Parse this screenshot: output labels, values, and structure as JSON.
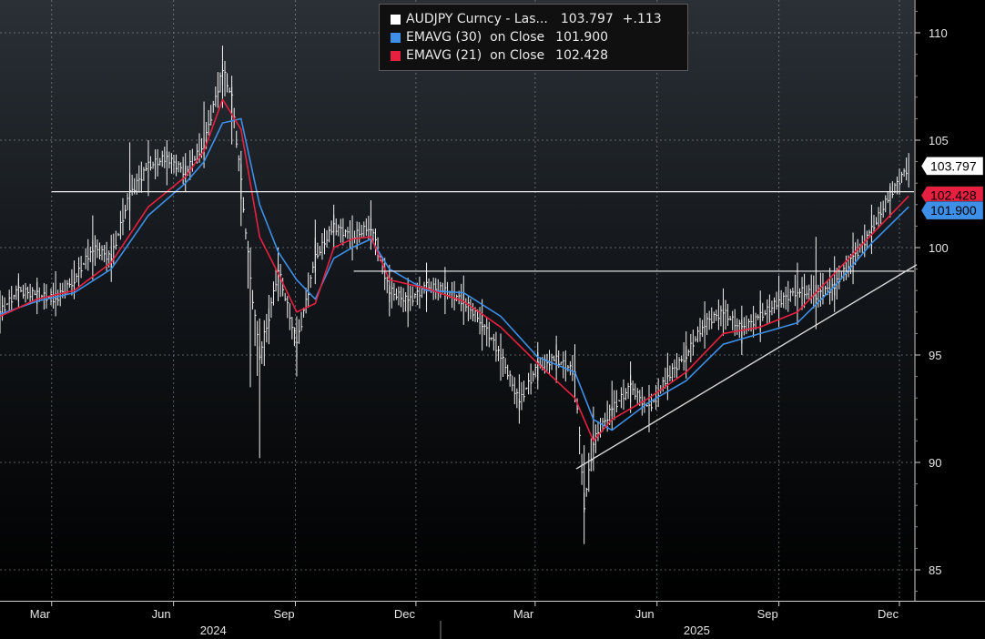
{
  "chart_data": {
    "type": "line",
    "title": "",
    "xlabel": "",
    "ylabel": "",
    "ylim": [
      84,
      111
    ],
    "y_ticks": [
      85,
      90,
      95,
      100,
      105,
      110
    ],
    "y_tick_labels": [
      "85",
      "90",
      "95",
      "100",
      "105",
      "110"
    ],
    "x_ticks": [
      {
        "label": "Mar",
        "date": "2024-03-01"
      },
      {
        "label": "Jun",
        "date": "2024-06-01"
      },
      {
        "label": "Sep",
        "date": "2024-09-01"
      },
      {
        "label": "Dec",
        "date": "2024-12-01"
      },
      {
        "label": "Mar",
        "date": "2025-03-01"
      },
      {
        "label": "Jun",
        "date": "2025-06-01"
      },
      {
        "label": "Sep",
        "date": "2025-09-01"
      },
      {
        "label": "Dec",
        "date": "2025-12-01"
      }
    ],
    "year_labels": [
      {
        "label": "2024",
        "date": "2024-07-01"
      },
      {
        "label": "2025",
        "date": "2025-07-01"
      }
    ],
    "x_range": [
      "2024-01-22",
      "2025-12-12"
    ],
    "grid": true,
    "legend_position": "top",
    "series": [
      {
        "name": "AUDJPY Curncy - Las...",
        "legend_value": "103.797",
        "legend_change": "+.113",
        "color": "#ffffff",
        "style": "bars",
        "x": [
          "2024-01-22",
          "2024-02-05",
          "2024-02-19",
          "2024-03-04",
          "2024-03-18",
          "2024-04-01",
          "2024-04-15",
          "2024-04-29",
          "2024-05-13",
          "2024-05-27",
          "2024-06-10",
          "2024-06-24",
          "2024-07-08",
          "2024-07-15",
          "2024-07-22",
          "2024-07-29",
          "2024-08-05",
          "2024-08-12",
          "2024-08-19",
          "2024-09-02",
          "2024-09-16",
          "2024-09-30",
          "2024-10-14",
          "2024-10-28",
          "2024-11-11",
          "2024-11-25",
          "2024-12-09",
          "2024-12-23",
          "2025-01-06",
          "2025-01-20",
          "2025-02-03",
          "2025-02-17",
          "2025-03-03",
          "2025-03-17",
          "2025-03-31",
          "2025-04-07",
          "2025-04-14",
          "2025-04-28",
          "2025-05-12",
          "2025-05-26",
          "2025-06-09",
          "2025-06-23",
          "2025-07-07",
          "2025-07-21",
          "2025-08-04",
          "2025-08-18",
          "2025-09-01",
          "2025-09-15",
          "2025-09-29",
          "2025-10-13",
          "2025-10-27",
          "2025-11-10",
          "2025-11-24",
          "2025-12-08"
        ],
        "y": [
          97.0,
          98.0,
          97.8,
          97.6,
          98.5,
          100.0,
          99.5,
          102.5,
          103.8,
          104.2,
          103.5,
          104.8,
          108.3,
          107.0,
          103.0,
          98.5,
          95.0,
          96.8,
          99.0,
          95.5,
          99.5,
          101.0,
          100.5,
          101.0,
          98.0,
          97.5,
          98.2,
          98.0,
          97.5,
          96.5,
          95.0,
          92.8,
          94.5,
          94.8,
          94.2,
          88.0,
          91.0,
          92.5,
          93.5,
          92.5,
          94.0,
          95.0,
          96.5,
          97.0,
          96.2,
          96.8,
          97.5,
          98.0,
          97.8,
          98.2,
          99.5,
          100.8,
          102.5,
          103.8
        ],
        "high": [
          98.0,
          98.8,
          98.6,
          98.9,
          99.4,
          101.5,
          100.6,
          104.9,
          105.0,
          105.0,
          104.4,
          106.8,
          109.4,
          108.0,
          104.5,
          100.0,
          96.7,
          97.8,
          100.0,
          96.8,
          101.3,
          102.0,
          101.5,
          102.2,
          99.2,
          98.6,
          99.3,
          99.1,
          98.7,
          97.6,
          96.0,
          94.1,
          95.6,
          95.9,
          95.5,
          90.8,
          92.6,
          93.8,
          94.7,
          93.6,
          95.1,
          96.1,
          97.5,
          98.1,
          97.3,
          98.0,
          98.7,
          99.3,
          100.5,
          99.6,
          100.7,
          102.0,
          103.0,
          104.4
        ],
        "low": [
          96.0,
          97.2,
          96.9,
          96.8,
          97.6,
          98.5,
          98.4,
          100.8,
          102.4,
          102.9,
          102.6,
          103.7,
          106.5,
          104.8,
          101.0,
          93.5,
          90.2,
          95.5,
          97.5,
          94.0,
          98.3,
          99.9,
          99.4,
          99.9,
          96.8,
          96.3,
          97.0,
          96.9,
          96.4,
          95.2,
          93.8,
          91.8,
          93.4,
          93.7,
          92.8,
          86.2,
          89.6,
          91.5,
          92.3,
          91.4,
          92.9,
          93.9,
          95.3,
          95.9,
          95.0,
          95.6,
          96.3,
          96.4,
          96.2,
          97.0,
          98.3,
          99.7,
          101.4,
          102.8
        ]
      },
      {
        "name": "EMAVG (30)  on Close",
        "legend_value": "101.900",
        "color": "#3d8fe8",
        "x": [
          "2024-01-22",
          "2024-02-19",
          "2024-03-18",
          "2024-04-15",
          "2024-05-13",
          "2024-06-10",
          "2024-06-24",
          "2024-07-08",
          "2024-07-22",
          "2024-08-05",
          "2024-08-19",
          "2024-09-02",
          "2024-09-16",
          "2024-09-30",
          "2024-10-14",
          "2024-10-28",
          "2024-11-11",
          "2024-12-09",
          "2025-01-06",
          "2025-02-03",
          "2025-03-03",
          "2025-03-31",
          "2025-04-14",
          "2025-04-28",
          "2025-05-26",
          "2025-06-23",
          "2025-07-21",
          "2025-08-18",
          "2025-09-15",
          "2025-10-13",
          "2025-11-10",
          "2025-12-08"
        ],
        "y": [
          96.9,
          97.5,
          97.9,
          99.0,
          101.5,
          103.0,
          104.0,
          105.8,
          106.0,
          102.0,
          99.8,
          98.5,
          97.6,
          99.5,
          100.0,
          100.4,
          99.0,
          98.0,
          97.9,
          96.8,
          94.9,
          94.2,
          92.0,
          91.5,
          92.8,
          93.8,
          95.5,
          96.0,
          96.5,
          98.2,
          100.2,
          101.9
        ]
      },
      {
        "name": "EMAVG (21)  on Close",
        "legend_value": "102.428",
        "color": "#e82040",
        "x": [
          "2024-01-22",
          "2024-02-19",
          "2024-03-18",
          "2024-04-15",
          "2024-05-13",
          "2024-06-10",
          "2024-06-24",
          "2024-07-08",
          "2024-07-22",
          "2024-08-05",
          "2024-08-19",
          "2024-09-02",
          "2024-09-16",
          "2024-09-30",
          "2024-10-14",
          "2024-10-28",
          "2024-11-11",
          "2024-12-09",
          "2025-01-06",
          "2025-02-03",
          "2025-03-03",
          "2025-03-31",
          "2025-04-14",
          "2025-04-28",
          "2025-05-26",
          "2025-06-23",
          "2025-07-21",
          "2025-08-18",
          "2025-09-15",
          "2025-10-13",
          "2025-11-10",
          "2025-12-08"
        ],
        "y": [
          96.8,
          97.6,
          98.0,
          99.3,
          101.9,
          103.3,
          104.5,
          106.9,
          105.5,
          100.5,
          98.8,
          97.0,
          97.4,
          100.0,
          100.4,
          100.5,
          98.5,
          98.1,
          97.5,
          96.3,
          94.6,
          93.0,
          91.0,
          92.0,
          93.0,
          94.2,
          96.0,
          96.3,
          97.0,
          98.8,
          100.6,
          102.4
        ]
      }
    ],
    "annotations": [
      {
        "type": "horizontal",
        "y": 102.6,
        "from": "2024-03-01",
        "to": "2025-12-12"
      },
      {
        "type": "horizontal",
        "y": 98.9,
        "from": "2024-10-15",
        "to": "2025-12-12"
      },
      {
        "type": "trendline",
        "x1": "2025-04-01",
        "y1": 89.7,
        "x2": "2025-12-14",
        "y2": 99.2
      }
    ],
    "last_value_tags": [
      {
        "text": "103.797",
        "y": 103.797,
        "bg": "#ffffff",
        "fg": "#000000"
      },
      {
        "text": "102.428",
        "y": 102.428,
        "bg": "#e82040",
        "fg": "#000000"
      },
      {
        "text": "101.900",
        "y": 101.9,
        "bg": "#3d8fe8",
        "fg": "#000000"
      }
    ]
  }
}
